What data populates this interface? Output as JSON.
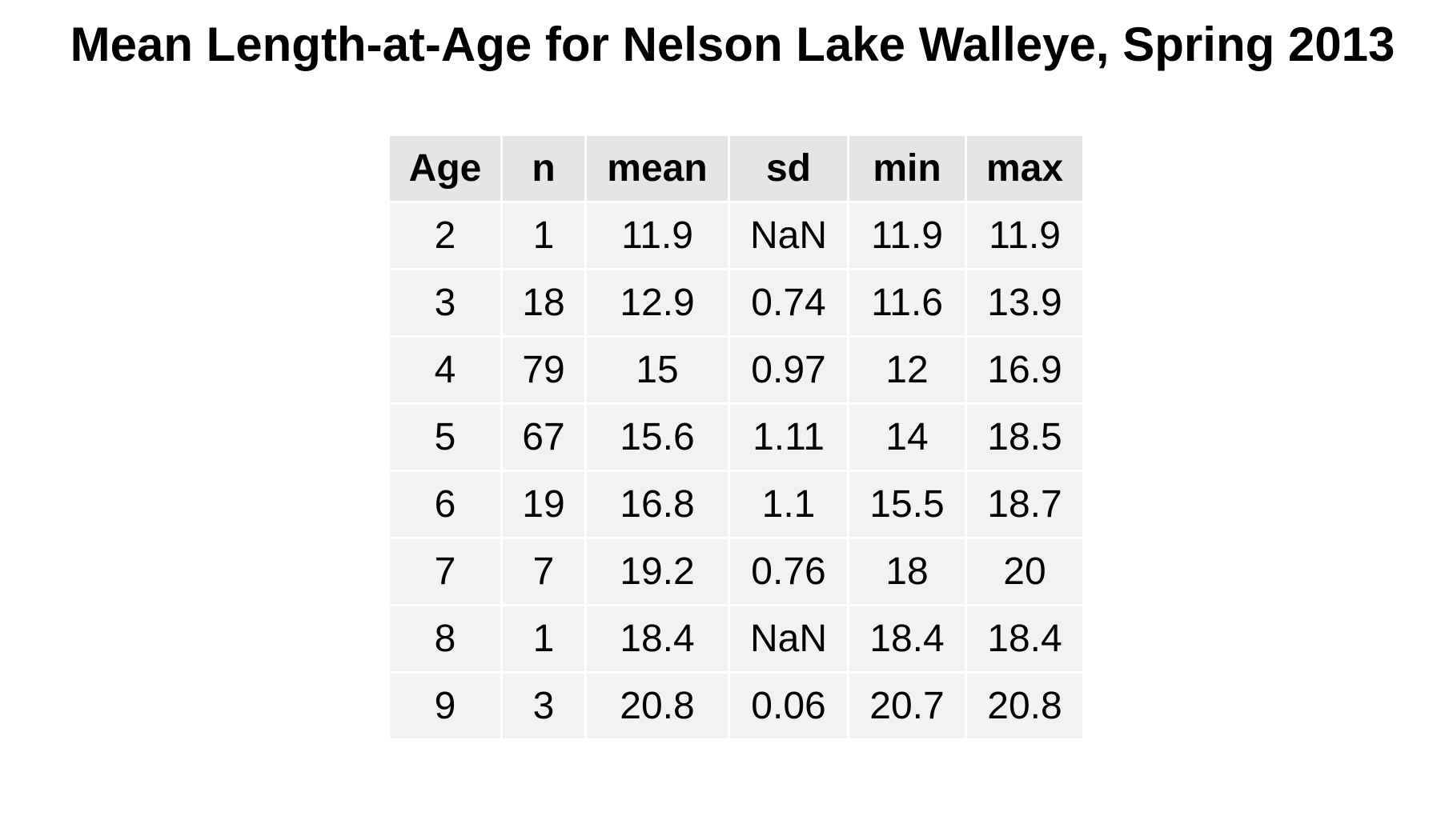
{
  "chart_data": {
    "type": "table",
    "title": "Mean Length-at-Age for Nelson Lake Walleye, Spring 2013",
    "columns": [
      "Age",
      "n",
      "mean",
      "sd",
      "min",
      "max"
    ],
    "rows": [
      [
        "2",
        "1",
        "11.9",
        "NaN",
        "11.9",
        "11.9"
      ],
      [
        "3",
        "18",
        "12.9",
        "0.74",
        "11.6",
        "13.9"
      ],
      [
        "4",
        "79",
        "15",
        "0.97",
        "12",
        "16.9"
      ],
      [
        "5",
        "67",
        "15.6",
        "1.11",
        "14",
        "18.5"
      ],
      [
        "6",
        "19",
        "16.8",
        "1.1",
        "15.5",
        "18.7"
      ],
      [
        "7",
        "7",
        "19.2",
        "0.76",
        "18",
        "20"
      ],
      [
        "8",
        "1",
        "18.4",
        "NaN",
        "18.4",
        "18.4"
      ],
      [
        "9",
        "3",
        "20.8",
        "0.06",
        "20.7",
        "20.8"
      ]
    ],
    "colors": {
      "header_bg": "#e5e5e5",
      "cell_bg": "#f2f2f2",
      "grid_line": "#ffffff"
    }
  }
}
